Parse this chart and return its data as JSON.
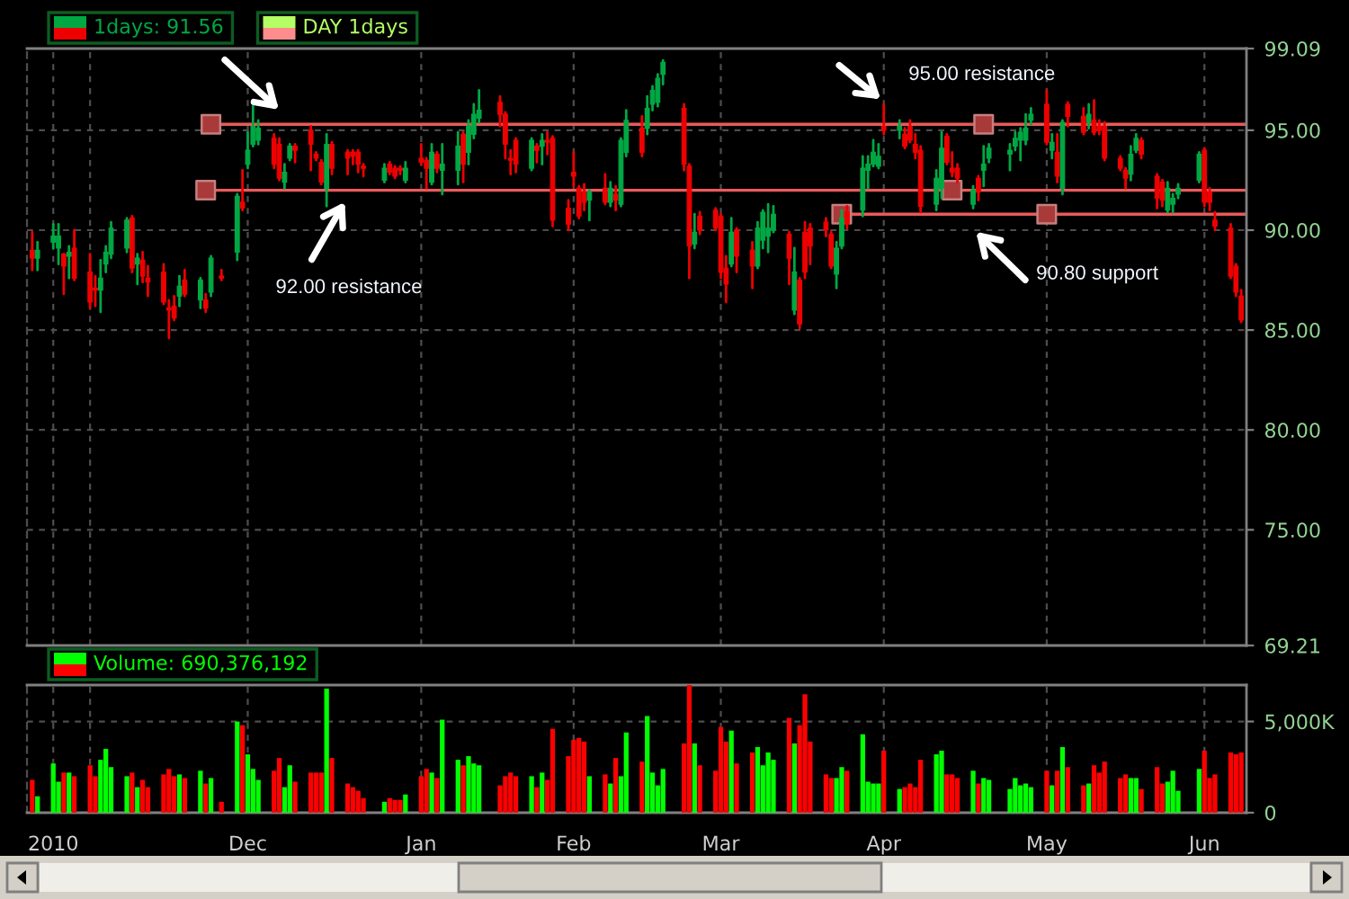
{
  "chart_data": [
    {
      "type": "candlestick",
      "x": [
        "2010-10-21",
        "2010-10-22",
        "2010-10-25",
        "2010-10-26",
        "2010-10-27",
        "2010-10-28",
        "2010-10-29",
        "2010-11-01",
        "2010-11-02",
        "2010-11-03",
        "2010-11-04",
        "2010-11-05",
        "2010-11-08",
        "2010-11-09",
        "2010-11-10",
        "2010-11-11",
        "2010-11-12",
        "2010-11-15",
        "2010-11-16",
        "2010-11-17",
        "2010-11-18",
        "2010-11-19",
        "2010-11-22",
        "2010-11-23",
        "2010-11-24",
        "2010-11-26",
        "2010-11-29",
        "2010-11-30",
        "2010-12-01",
        "2010-12-02",
        "2010-12-03",
        "2010-12-06",
        "2010-12-07",
        "2010-12-08",
        "2010-12-09",
        "2010-12-10",
        "2010-12-13",
        "2010-12-14",
        "2010-12-15",
        "2010-12-16",
        "2010-12-17",
        "2010-12-20",
        "2010-12-21",
        "2010-12-22",
        "2010-12-23",
        "2010-12-27",
        "2010-12-28",
        "2010-12-29",
        "2010-12-30",
        "2010-12-31",
        "2011-01-03",
        "2011-01-04",
        "2011-01-05",
        "2011-01-06",
        "2011-01-07",
        "2011-01-10",
        "2011-01-11",
        "2011-01-12",
        "2011-01-13",
        "2011-01-14",
        "2011-01-18",
        "2011-01-19",
        "2011-01-20",
        "2011-01-21",
        "2011-01-24",
        "2011-01-25",
        "2011-01-26",
        "2011-01-27",
        "2011-01-28",
        "2011-01-31",
        "2011-02-01",
        "2011-02-02",
        "2011-02-03",
        "2011-02-04",
        "2011-02-07",
        "2011-02-08",
        "2011-02-09",
        "2011-02-10",
        "2011-02-11",
        "2011-02-14",
        "2011-02-15",
        "2011-02-16",
        "2011-02-17",
        "2011-02-18",
        "2011-02-22",
        "2011-02-23",
        "2011-02-24",
        "2011-02-25",
        "2011-02-28",
        "2011-03-01",
        "2011-03-02",
        "2011-03-03",
        "2011-03-04",
        "2011-03-07",
        "2011-03-08",
        "2011-03-09",
        "2011-03-10",
        "2011-03-11",
        "2011-03-14",
        "2011-03-15",
        "2011-03-16",
        "2011-03-17",
        "2011-03-18",
        "2011-03-21",
        "2011-03-22",
        "2011-03-23",
        "2011-03-24",
        "2011-03-25",
        "2011-03-28",
        "2011-03-29",
        "2011-03-30",
        "2011-03-31",
        "2011-04-01",
        "2011-04-04",
        "2011-04-05",
        "2011-04-06",
        "2011-04-07",
        "2011-04-08",
        "2011-04-11",
        "2011-04-12",
        "2011-04-13",
        "2011-04-14",
        "2011-04-15",
        "2011-04-18",
        "2011-04-19",
        "2011-04-20",
        "2011-04-21",
        "2011-04-25",
        "2011-04-26",
        "2011-04-27",
        "2011-04-28",
        "2011-04-29",
        "2011-05-02",
        "2011-05-03",
        "2011-05-04",
        "2011-05-05",
        "2011-05-06",
        "2011-05-09",
        "2011-05-10",
        "2011-05-11",
        "2011-05-12",
        "2011-05-13",
        "2011-05-16",
        "2011-05-17",
        "2011-05-18",
        "2011-05-19",
        "2011-05-20",
        "2011-05-23",
        "2011-05-24",
        "2011-05-25",
        "2011-05-26",
        "2011-05-27",
        "2011-05-31",
        "2011-06-01",
        "2011-06-02",
        "2011-06-03",
        "2011-06-06",
        "2011-06-07",
        "2011-06-08"
      ],
      "series": [
        {
          "name": "1days: 91.56",
          "ohlc": [
            [
              89.0,
              89.9,
              88.0,
              88.6
            ],
            [
              88.6,
              89.4,
              88.0,
              89.0
            ],
            [
              89.4,
              90.3,
              89.1,
              89.7
            ],
            [
              89.1,
              90.3,
              88.3,
              89.7
            ],
            [
              88.8,
              88.8,
              86.8,
              88.2
            ],
            [
              88.7,
              89.2,
              87.6,
              88.9
            ],
            [
              89.1,
              90.0,
              87.5,
              87.6
            ],
            [
              87.9,
              88.8,
              86.1,
              86.4
            ],
            [
              87.1,
              87.7,
              86.2,
              87.0
            ],
            [
              87.0,
              88.5,
              85.9,
              87.6
            ],
            [
              88.3,
              89.2,
              87.9,
              88.9
            ],
            [
              88.8,
              90.4,
              88.6,
              90.1
            ],
            [
              89.1,
              90.6,
              88.9,
              90.5
            ],
            [
              90.6,
              90.7,
              87.9,
              88.1
            ],
            [
              88.3,
              88.8,
              87.3,
              88.6
            ],
            [
              88.5,
              88.9,
              87.4,
              87.7
            ],
            [
              87.6,
              88.2,
              86.7,
              87.4
            ],
            [
              87.9,
              88.3,
              86.3,
              86.4
            ],
            [
              86.1,
              86.5,
              84.6,
              86.0
            ],
            [
              86.2,
              86.7,
              85.5,
              85.6
            ],
            [
              86.7,
              87.7,
              86.2,
              87.2
            ],
            [
              87.5,
              88.0,
              86.7,
              86.8
            ],
            [
              86.5,
              87.6,
              86.1,
              87.5
            ],
            [
              86.5,
              86.8,
              85.9,
              86.1
            ],
            [
              86.9,
              88.7,
              86.7,
              88.6
            ],
            [
              87.7,
              88.0,
              87.5,
              87.6
            ],
            [
              88.9,
              91.8,
              88.5,
              91.7
            ],
            [
              91.4,
              93.0,
              91.0,
              91.1
            ],
            [
              93.3,
              94.9,
              93.1,
              94.0
            ],
            [
              94.3,
              96.2,
              94.2,
              95.2
            ],
            [
              94.5,
              95.5,
              94.3,
              95.1
            ],
            [
              94.6,
              94.8,
              93.1,
              93.3
            ],
            [
              94.3,
              94.6,
              92.5,
              92.6
            ],
            [
              92.4,
              93.3,
              92.1,
              92.9
            ],
            [
              93.6,
              94.3,
              93.5,
              94.2
            ],
            [
              94.2,
              94.3,
              93.4,
              94.0
            ],
            [
              95.0,
              95.2,
              93.0,
              94.3
            ],
            [
              93.8,
              93.9,
              93.5,
              93.6
            ],
            [
              93.4,
              93.5,
              92.3,
              92.4
            ],
            [
              92.1,
              94.8,
              91.2,
              94.3
            ],
            [
              94.3,
              94.4,
              92.8,
              93.1
            ],
            [
              93.9,
              94.0,
              92.8,
              93.6
            ],
            [
              93.9,
              94.0,
              93.3,
              93.7
            ],
            [
              93.9,
              94.0,
              92.9,
              93.3
            ],
            [
              93.2,
              93.3,
              92.7,
              93.1
            ],
            [
              92.5,
              93.3,
              92.4,
              93.1
            ],
            [
              93.3,
              93.4,
              92.8,
              92.9
            ],
            [
              93.1,
              93.2,
              92.6,
              92.7
            ],
            [
              93.1,
              93.2,
              92.8,
              93.0
            ],
            [
              92.5,
              93.4,
              92.4,
              93.1
            ],
            [
              93.6,
              94.3,
              93.3,
              93.4
            ],
            [
              93.5,
              93.6,
              92.1,
              93.1
            ],
            [
              92.4,
              94.3,
              92.3,
              93.9
            ],
            [
              93.8,
              93.9,
              92.9,
              93.1
            ],
            [
              93.0,
              94.3,
              91.8,
              93.3
            ],
            [
              93.0,
              94.9,
              92.3,
              94.2
            ],
            [
              94.8,
              94.9,
              92.4,
              93.3
            ],
            [
              93.9,
              95.5,
              93.3,
              95.2
            ],
            [
              94.8,
              96.3,
              94.6,
              95.8
            ],
            [
              95.6,
              97.0,
              95.4,
              96.0
            ],
            [
              96.4,
              96.7,
              95.2,
              95.8
            ],
            [
              95.8,
              95.9,
              93.6,
              94.3
            ],
            [
              93.6,
              94.0,
              92.8,
              93.5
            ],
            [
              94.5,
              94.6,
              92.9,
              93.3
            ],
            [
              93.1,
              94.6,
              93.0,
              94.5
            ],
            [
              94.2,
              94.3,
              93.4,
              94.0
            ],
            [
              94.2,
              94.8,
              93.3,
              94.5
            ],
            [
              94.5,
              94.9,
              93.8,
              94.4
            ],
            [
              94.6,
              94.7,
              90.2,
              90.5
            ],
            [
              91.1,
              91.5,
              90.0,
              90.3
            ],
            [
              92.9,
              93.9,
              92.2,
              92.7
            ],
            [
              92.1,
              92.2,
              90.6,
              90.7
            ],
            [
              91.9,
              92.3,
              91.0,
              91.4
            ],
            [
              91.5,
              92.0,
              90.5,
              91.9
            ],
            [
              92.1,
              92.8,
              91.3,
              91.4
            ],
            [
              91.4,
              92.4,
              91.2,
              92.1
            ],
            [
              91.8,
              92.2,
              91.0,
              91.5
            ],
            [
              91.3,
              94.6,
              91.2,
              94.5
            ],
            [
              93.9,
              96.0,
              93.7,
              95.5
            ],
            [
              95.1,
              95.7,
              93.7,
              93.9
            ],
            [
              95.1,
              96.7,
              94.8,
              96.1
            ],
            [
              96.3,
              97.2,
              96.0,
              97.0
            ],
            [
              96.4,
              97.8,
              96.2,
              97.6
            ],
            [
              97.8,
              98.5,
              97.3,
              98.4
            ],
            [
              96.1,
              96.3,
              93.0,
              93.3
            ],
            [
              93.2,
              93.3,
              87.6,
              89.2
            ],
            [
              89.3,
              90.8,
              89.1,
              89.9
            ],
            [
              90.7,
              90.9,
              89.8,
              90.0
            ],
            [
              91.0,
              91.1,
              90.0,
              90.1
            ],
            [
              90.7,
              90.8,
              87.6,
              87.9
            ],
            [
              88.1,
              88.7,
              86.4,
              87.3
            ],
            [
              88.3,
              90.6,
              88.2,
              89.9
            ],
            [
              90.0,
              90.1,
              87.9,
              88.7
            ],
            [
              89.0,
              89.4,
              87.1,
              88.2
            ],
            [
              88.2,
              90.4,
              88.1,
              90.1
            ],
            [
              89.5,
              91.0,
              89.1,
              90.9
            ],
            [
              89.7,
              91.3,
              88.9,
              90.1
            ],
            [
              90.0,
              91.2,
              89.9,
              90.8
            ],
            [
              89.8,
              89.9,
              87.3,
              88.6
            ],
            [
              86.0,
              89.1,
              85.8,
              87.9
            ],
            [
              87.5,
              87.6,
              85.1,
              85.3
            ],
            [
              89.9,
              90.4,
              87.6,
              87.9
            ],
            [
              90.1,
              90.3,
              88.3,
              89.2
            ],
            [
              90.4,
              90.6,
              89.7,
              90.0
            ],
            [
              89.8,
              89.9,
              88.1,
              88.2
            ],
            [
              87.8,
              89.4,
              87.1,
              89.1
            ],
            [
              89.2,
              91.0,
              89.1,
              90.6
            ],
            [
              90.9,
              91.2,
              90.1,
              90.3
            ],
            [
              91.0,
              93.7,
              90.7,
              93.1
            ],
            [
              93.0,
              93.7,
              92.1,
              93.3
            ],
            [
              93.3,
              94.5,
              93.2,
              93.9
            ],
            [
              93.2,
              94.3,
              93.1,
              93.7
            ],
            [
              95.2,
              96.3,
              94.8,
              95.0
            ],
            [
              95.0,
              95.5,
              94.6,
              95.2
            ],
            [
              94.8,
              95.1,
              94.1,
              94.2
            ],
            [
              95.2,
              95.5,
              94.4,
              94.5
            ],
            [
              94.3,
              94.8,
              93.6,
              93.9
            ],
            [
              94.0,
              94.2,
              90.9,
              91.2
            ],
            [
              91.3,
              93.0,
              91.0,
              92.6
            ],
            [
              92.1,
              94.9,
              91.6,
              94.1
            ],
            [
              94.7,
              94.8,
              93.3,
              93.4
            ],
            [
              93.1,
              93.9,
              92.7,
              92.9
            ],
            [
              93.1,
              93.3,
              92.4,
              92.6
            ],
            [
              91.3,
              92.2,
              91.1,
              92.0
            ],
            [
              92.6,
              92.7,
              91.5,
              91.9
            ],
            [
              93.0,
              94.2,
              92.2,
              93.3
            ],
            [
              93.6,
              94.3,
              93.4,
              94.1
            ],
            [
              93.8,
              94.3,
              93.0,
              94.0
            ],
            [
              94.2,
              94.9,
              94.0,
              94.6
            ],
            [
              94.5,
              95.1,
              93.5,
              94.9
            ],
            [
              94.5,
              95.8,
              94.3,
              95.1
            ],
            [
              95.5,
              96.1,
              95.3,
              95.8
            ],
            [
              96.3,
              97.0,
              94.3,
              94.4
            ],
            [
              94.0,
              94.8,
              93.6,
              94.4
            ],
            [
              93.9,
              94.8,
              92.4,
              92.7
            ],
            [
              92.1,
              95.5,
              91.8,
              95.4
            ],
            [
              96.3,
              96.4,
              95.2,
              95.7
            ],
            [
              95.7,
              96.1,
              94.8,
              94.9
            ],
            [
              95.4,
              96.3,
              95.1,
              95.8
            ],
            [
              95.5,
              96.5,
              94.8,
              94.9
            ],
            [
              95.2,
              95.5,
              94.8,
              95.0
            ],
            [
              95.2,
              95.4,
              93.5,
              93.6
            ],
            [
              93.6,
              93.7,
              93.0,
              93.1
            ],
            [
              93.0,
              93.1,
              92.1,
              92.6
            ],
            [
              92.8,
              94.2,
              92.5,
              93.8
            ],
            [
              94.0,
              94.8,
              93.9,
              94.6
            ],
            [
              94.5,
              94.6,
              93.6,
              93.8
            ],
            [
              92.7,
              92.8,
              91.1,
              91.6
            ],
            [
              92.4,
              92.5,
              91.2,
              91.5
            ],
            [
              91.0,
              92.4,
              90.9,
              92.1
            ],
            [
              91.3,
              91.8,
              90.9,
              91.6
            ],
            [
              91.8,
              92.3,
              91.6,
              92.1
            ],
            [
              92.5,
              93.9,
              92.4,
              93.8
            ],
            [
              94.0,
              94.1,
              91.2,
              91.4
            ],
            [
              91.9,
              92.1,
              91.0,
              91.4
            ],
            [
              90.5,
              90.9,
              90.0,
              90.2
            ],
            [
              90.1,
              90.3,
              87.6,
              87.7
            ],
            [
              88.2,
              88.3,
              86.7,
              86.9
            ],
            [
              86.7,
              87.0,
              85.4,
              85.5
            ]
          ],
          "colors": [
            "#ee0000",
            "#00a844",
            "#00a844",
            "#00a844",
            "#ee0000",
            "#00a844",
            "#ee0000",
            "#ee0000",
            "#ee0000",
            "#00a844",
            "#00a844",
            "#00a844",
            "#00a844",
            "#ee0000",
            "#00a844",
            "#ee0000",
            "#ee0000",
            "#ee0000",
            "#ee0000",
            "#ee0000",
            "#00a844",
            "#ee0000",
            "#00a844",
            "#ee0000",
            "#00a844",
            "#ee0000",
            "#00a844",
            "#ee0000",
            "#00a844",
            "#00a844",
            "#00a844",
            "#ee0000",
            "#ee0000",
            "#00a844",
            "#00a844",
            "#ee0000",
            "#ee0000",
            "#ee0000",
            "#ee0000",
            "#00a844",
            "#ee0000",
            "#ee0000",
            "#ee0000",
            "#ee0000",
            "#ee0000",
            "#00a844",
            "#ee0000",
            "#ee0000",
            "#ee0000",
            "#00a844",
            "#ee0000",
            "#ee0000",
            "#00a844",
            "#ee0000",
            "#00a844",
            "#00a844",
            "#ee0000",
            "#00a844",
            "#00a844",
            "#00a844",
            "#ee0000",
            "#ee0000",
            "#ee0000",
            "#ee0000",
            "#00a844",
            "#ee0000",
            "#00a844",
            "#ee0000",
            "#ee0000",
            "#ee0000",
            "#ee0000",
            "#ee0000",
            "#ee0000",
            "#00a844",
            "#ee0000",
            "#00a844",
            "#ee0000",
            "#00a844",
            "#00a844",
            "#ee0000",
            "#00a844",
            "#00a844",
            "#00a844",
            "#00a844",
            "#ee0000",
            "#ee0000",
            "#00a844",
            "#ee0000",
            "#ee0000",
            "#ee0000",
            "#ee0000",
            "#00a844",
            "#ee0000",
            "#ee0000",
            "#00a844",
            "#00a844",
            "#00a844",
            "#00a844",
            "#ee0000",
            "#00a844",
            "#ee0000",
            "#ee0000",
            "#ee0000",
            "#ee0000",
            "#ee0000",
            "#00a844",
            "#00a844",
            "#ee0000",
            "#00a844",
            "#00a844",
            "#00a844",
            "#00a844",
            "#ee0000",
            "#00a844",
            "#ee0000",
            "#ee0000",
            "#ee0000",
            "#ee0000",
            "#00a844",
            "#00a844",
            "#ee0000",
            "#ee0000",
            "#ee0000",
            "#00a844",
            "#ee0000",
            "#00a844",
            "#00a844",
            "#00a844",
            "#00a844",
            "#00a844",
            "#00a844",
            "#00a844",
            "#ee0000",
            "#00a844",
            "#ee0000",
            "#00a844",
            "#ee0000",
            "#ee0000",
            "#00a844",
            "#ee0000",
            "#ee0000",
            "#ee0000",
            "#ee0000",
            "#ee0000",
            "#00a844",
            "#00a844",
            "#ee0000",
            "#ee0000",
            "#ee0000",
            "#00a844",
            "#00a844",
            "#00a844",
            "#00a844",
            "#ee0000",
            "#ee0000",
            "#ee0000",
            "#ee0000",
            "#ee0000",
            "#ee0000"
          ]
        },
        {
          "type": "line",
          "x": [
            "2010-11-24",
            "2011-06-09"
          ],
          "values": [
            95.3,
            95.3
          ],
          "color": "#e85a5a"
        },
        {
          "type": "line",
          "x": [
            "2010-11-23",
            "2011-06-09"
          ],
          "values": [
            92,
            92
          ],
          "color": "#e85a5a"
        },
        {
          "type": "line",
          "x": [
            "2011-03-24",
            "2011-06-09"
          ],
          "values": [
            90.8,
            90.8
          ],
          "color": "#e85a5a"
        },
        {
          "type": "scatter",
          "x": [
            "2010-11-24",
            "2011-04-20",
            "2010-11-23",
            "2011-04-14",
            "2011-03-24",
            "2011-05-02"
          ],
          "values": [
            95.3,
            95.3,
            92,
            92,
            90.8,
            90.8
          ],
          "color": "#a83a3a",
          "marker": "square"
        }
      ],
      "xlim": [
        "2010-10-20",
        "2011-06-09"
      ],
      "ylim": [
        69.21,
        99.09
      ],
      "xticks": [
        {
          "value": "2010-10-25",
          "label": null
        },
        {
          "value": "2010-11-01",
          "label": null
        },
        {
          "value": "2010-12-01",
          "label": null
        },
        {
          "value": "2011-01-03",
          "label": null
        },
        {
          "value": "2011-02-01",
          "label": null
        },
        {
          "value": "2011-03-01",
          "label": null
        },
        {
          "value": "2011-04-01",
          "label": null
        },
        {
          "value": "2011-05-02",
          "label": null
        },
        {
          "value": "2011-06-01",
          "label": null
        }
      ],
      "yticks": [
        69.21,
        {
          "value": 75,
          "label": "75.00"
        },
        {
          "value": 80,
          "label": "80.00"
        },
        {
          "value": 85,
          "label": "85.00"
        },
        {
          "value": 90,
          "label": "90.00"
        },
        {
          "value": 95,
          "label": "95.00"
        },
        99.09
      ],
      "tick_labels": "y",
      "grid": true,
      "legend": "top left",
      "annotations": [
        "92.00 resistance",
        "95.00 resistance",
        "90.80 support",
        "DAY 1days"
      ]
    },
    {
      "type": "bar",
      "x": [
        "2010-10-21",
        "2010-10-22",
        "2010-10-25",
        "2010-10-26",
        "2010-10-27",
        "2010-10-28",
        "2010-10-29",
        "2010-11-01",
        "2010-11-02",
        "2010-11-03",
        "2010-11-04",
        "2010-11-05",
        "2010-11-08",
        "2010-11-09",
        "2010-11-10",
        "2010-11-11",
        "2010-11-12",
        "2010-11-15",
        "2010-11-16",
        "2010-11-17",
        "2010-11-18",
        "2010-11-19",
        "2010-11-22",
        "2010-11-23",
        "2010-11-24",
        "2010-11-26",
        "2010-11-29",
        "2010-11-30",
        "2010-12-01",
        "2010-12-02",
        "2010-12-03",
        "2010-12-06",
        "2010-12-07",
        "2010-12-08",
        "2010-12-09",
        "2010-12-10",
        "2010-12-13",
        "2010-12-14",
        "2010-12-15",
        "2010-12-16",
        "2010-12-17",
        "2010-12-20",
        "2010-12-21",
        "2010-12-22",
        "2010-12-23",
        "2010-12-27",
        "2010-12-28",
        "2010-12-29",
        "2010-12-30",
        "2010-12-31",
        "2011-01-03",
        "2011-01-04",
        "2011-01-05",
        "2011-01-06",
        "2011-01-07",
        "2011-01-10",
        "2011-01-11",
        "2011-01-12",
        "2011-01-13",
        "2011-01-14",
        "2011-01-18",
        "2011-01-19",
        "2011-01-20",
        "2011-01-21",
        "2011-01-24",
        "2011-01-25",
        "2011-01-26",
        "2011-01-27",
        "2011-01-28",
        "2011-01-31",
        "2011-02-01",
        "2011-02-02",
        "2011-02-03",
        "2011-02-04",
        "2011-02-07",
        "2011-02-08",
        "2011-02-09",
        "2011-02-10",
        "2011-02-11",
        "2011-02-14",
        "2011-02-15",
        "2011-02-16",
        "2011-02-17",
        "2011-02-18",
        "2011-02-22",
        "2011-02-23",
        "2011-02-24",
        "2011-02-25",
        "2011-02-28",
        "2011-03-01",
        "2011-03-02",
        "2011-03-03",
        "2011-03-04",
        "2011-03-07",
        "2011-03-08",
        "2011-03-09",
        "2011-03-10",
        "2011-03-11",
        "2011-03-14",
        "2011-03-15",
        "2011-03-16",
        "2011-03-17",
        "2011-03-18",
        "2011-03-21",
        "2011-03-22",
        "2011-03-23",
        "2011-03-24",
        "2011-03-25",
        "2011-03-28",
        "2011-03-29",
        "2011-03-30",
        "2011-03-31",
        "2011-04-01",
        "2011-04-04",
        "2011-04-05",
        "2011-04-06",
        "2011-04-07",
        "2011-04-08",
        "2011-04-11",
        "2011-04-12",
        "2011-04-13",
        "2011-04-14",
        "2011-04-15",
        "2011-04-18",
        "2011-04-19",
        "2011-04-20",
        "2011-04-21",
        "2011-04-25",
        "2011-04-26",
        "2011-04-27",
        "2011-04-28",
        "2011-04-29",
        "2011-05-02",
        "2011-05-03",
        "2011-05-04",
        "2011-05-05",
        "2011-05-06",
        "2011-05-09",
        "2011-05-10",
        "2011-05-11",
        "2011-05-12",
        "2011-05-13",
        "2011-05-16",
        "2011-05-17",
        "2011-05-18",
        "2011-05-19",
        "2011-05-20",
        "2011-05-23",
        "2011-05-24",
        "2011-05-25",
        "2011-05-26",
        "2011-05-27",
        "2011-05-31",
        "2011-06-01",
        "2011-06-02",
        "2011-06-03",
        "2011-06-06",
        "2011-06-07",
        "2011-06-08"
      ],
      "series": [
        {
          "name": "Volume: 690,376,192",
          "values": [
            1800,
            900,
            2700,
            1700,
            2200,
            2200,
            2000,
            2600,
            2000,
            2900,
            3500,
            2500,
            2000,
            2200,
            1400,
            1800,
            1400,
            2100,
            2400,
            2000,
            2100,
            1900,
            2300,
            1600,
            1900,
            600,
            5000,
            4800,
            3200,
            2400,
            1800,
            2300,
            3000,
            1400,
            2600,
            1700,
            2200,
            2200,
            2200,
            6800,
            3000,
            1600,
            1400,
            1200,
            800,
            600,
            800,
            700,
            700,
            1000,
            2000,
            2400,
            2200,
            1900,
            5100,
            2900,
            2600,
            3100,
            2700,
            2600,
            1500,
            2000,
            2200,
            2000,
            2000,
            1400,
            2200,
            1800,
            4600,
            3100,
            4000,
            4100,
            3900,
            2000,
            2100,
            1600,
            3000,
            2000,
            4400,
            2800,
            5300,
            2200,
            1500,
            2400,
            3800,
            7000,
            3800,
            2600,
            2300,
            4700,
            3900,
            4500,
            2700,
            3300,
            3600,
            2600,
            3300,
            2900,
            5200,
            3800,
            4800,
            6500,
            3900,
            2100,
            1900,
            1900,
            2500,
            2300,
            4300,
            1700,
            1600,
            1600,
            3400,
            1300,
            1400,
            1600,
            1400,
            2900,
            3200,
            3400,
            2100,
            2100,
            1900,
            2300,
            1600,
            1900,
            1800,
            1300,
            1900,
            1500,
            1600,
            1400,
            2300,
            1500,
            2300,
            3600,
            2500,
            1500,
            1600,
            2600,
            2200,
            2800,
            1900,
            2100,
            1900,
            1900,
            1300,
            2500,
            1600,
            1700,
            2300,
            1200,
            2400,
            3400,
            1900,
            2100,
            3300,
            3200,
            3300
          ],
          "colors": [
            "#ff0000",
            "#00ff00",
            "#00ff00",
            "#00ff00",
            "#ff0000",
            "#00ff00",
            "#ff0000",
            "#ff0000",
            "#ff0000",
            "#00ff00",
            "#00ff00",
            "#00ff00",
            "#00ff00",
            "#ff0000",
            "#00ff00",
            "#ff0000",
            "#ff0000",
            "#ff0000",
            "#ff0000",
            "#ff0000",
            "#00ff00",
            "#ff0000",
            "#00ff00",
            "#ff0000",
            "#00ff00",
            "#ff0000",
            "#00ff00",
            "#ff0000",
            "#00ff00",
            "#00ff00",
            "#00ff00",
            "#ff0000",
            "#ff0000",
            "#00ff00",
            "#00ff00",
            "#ff0000",
            "#ff0000",
            "#ff0000",
            "#ff0000",
            "#00ff00",
            "#ff0000",
            "#ff0000",
            "#ff0000",
            "#ff0000",
            "#ff0000",
            "#00ff00",
            "#ff0000",
            "#ff0000",
            "#ff0000",
            "#00ff00",
            "#ff0000",
            "#ff0000",
            "#00ff00",
            "#ff0000",
            "#00ff00",
            "#00ff00",
            "#ff0000",
            "#00ff00",
            "#00ff00",
            "#00ff00",
            "#ff0000",
            "#ff0000",
            "#ff0000",
            "#ff0000",
            "#00ff00",
            "#ff0000",
            "#00ff00",
            "#ff0000",
            "#ff0000",
            "#ff0000",
            "#ff0000",
            "#ff0000",
            "#ff0000",
            "#00ff00",
            "#ff0000",
            "#00ff00",
            "#ff0000",
            "#00ff00",
            "#00ff00",
            "#ff0000",
            "#00ff00",
            "#00ff00",
            "#00ff00",
            "#00ff00",
            "#ff0000",
            "#ff0000",
            "#00ff00",
            "#ff0000",
            "#ff0000",
            "#ff0000",
            "#ff0000",
            "#00ff00",
            "#ff0000",
            "#ff0000",
            "#00ff00",
            "#00ff00",
            "#00ff00",
            "#00ff00",
            "#ff0000",
            "#00ff00",
            "#ff0000",
            "#ff0000",
            "#ff0000",
            "#ff0000",
            "#ff0000",
            "#00ff00",
            "#00ff00",
            "#ff0000",
            "#00ff00",
            "#00ff00",
            "#00ff00",
            "#00ff00",
            "#ff0000",
            "#00ff00",
            "#ff0000",
            "#ff0000",
            "#ff0000",
            "#ff0000",
            "#00ff00",
            "#00ff00",
            "#ff0000",
            "#ff0000",
            "#ff0000",
            "#00ff00",
            "#ff0000",
            "#00ff00",
            "#00ff00",
            "#00ff00",
            "#00ff00",
            "#00ff00",
            "#00ff00",
            "#00ff00",
            "#ff0000",
            "#00ff00",
            "#ff0000",
            "#00ff00",
            "#ff0000",
            "#ff0000",
            "#00ff00",
            "#ff0000",
            "#ff0000",
            "#ff0000",
            "#ff0000",
            "#ff0000",
            "#00ff00",
            "#00ff00",
            "#ff0000",
            "#ff0000",
            "#ff0000",
            "#00ff00",
            "#00ff00",
            "#00ff00",
            "#00ff00",
            "#ff0000",
            "#ff0000",
            "#ff0000",
            "#ff0000",
            "#ff0000",
            "#ff0000"
          ]
        }
      ],
      "xlim": [
        "2010-10-20",
        "2011-06-09"
      ],
      "ylim": [
        0,
        7000
      ],
      "xticks": [
        {
          "value": "2010-10-25",
          "label": "2010"
        },
        {
          "value": "2010-11-01",
          "label": null
        },
        {
          "value": "2010-12-01",
          "label": "Dec"
        },
        {
          "value": "2011-01-03",
          "label": "Jan"
        },
        {
          "value": "2011-02-01",
          "label": "Feb"
        },
        {
          "value": "2011-03-01",
          "label": "Mar"
        },
        {
          "value": "2011-04-01",
          "label": "Apr"
        },
        {
          "value": "2011-05-02",
          "label": "May"
        },
        {
          "value": "2011-06-01",
          "label": "Jun"
        }
      ],
      "yticks": [
        0,
        {
          "value": 5000,
          "label": "5,000K"
        }
      ],
      "grid": true,
      "legend": "top left"
    }
  ]
}
